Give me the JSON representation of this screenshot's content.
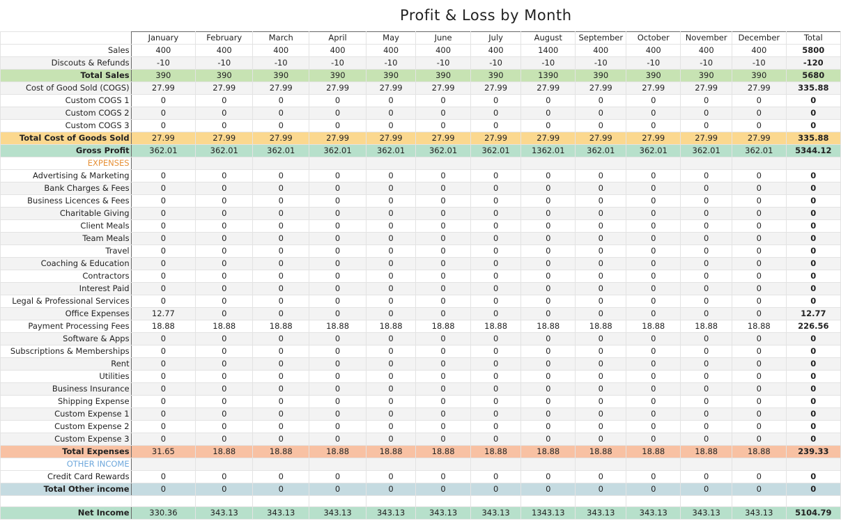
{
  "sheet": {
    "title": "Profit & Loss by Month",
    "months": [
      "January",
      "February",
      "March",
      "April",
      "May",
      "June",
      "July",
      "August",
      "September",
      "October",
      "November",
      "December"
    ],
    "total_label": "Total",
    "colors": {
      "total_sales": "#c7e3b3",
      "total_cogs": "#fbd88f",
      "gross_profit": "#b7e0cb",
      "total_expenses": "#f8c1a3",
      "total_other_income": "#c5dbe1",
      "net_income": "#b7e0cb",
      "expenses_header": "#e69138",
      "other_income_header": "#6fa8dc",
      "band": "#f3f3f3"
    },
    "rows": [
      {
        "label": "Sales",
        "values": [
          "400",
          "400",
          "400",
          "400",
          "400",
          "400",
          "400",
          "1400",
          "400",
          "400",
          "400",
          "400"
        ],
        "total": "5800"
      },
      {
        "label": "Discouts & Refunds",
        "values": [
          "-10",
          "-10",
          "-10",
          "-10",
          "-10",
          "-10",
          "-10",
          "-10",
          "-10",
          "-10",
          "-10",
          "-10"
        ],
        "total": "-120"
      },
      {
        "label": "Total Sales",
        "style": "total_sales",
        "values": [
          "390",
          "390",
          "390",
          "390",
          "390",
          "390",
          "390",
          "1390",
          "390",
          "390",
          "390",
          "390"
        ],
        "total": "5680"
      },
      {
        "label": "Cost of Good Sold (COGS)",
        "values": [
          "27.99",
          "27.99",
          "27.99",
          "27.99",
          "27.99",
          "27.99",
          "27.99",
          "27.99",
          "27.99",
          "27.99",
          "27.99",
          "27.99"
        ],
        "total": "335.88"
      },
      {
        "label": "Custom COGS 1",
        "values": [
          "0",
          "0",
          "0",
          "0",
          "0",
          "0",
          "0",
          "0",
          "0",
          "0",
          "0",
          "0"
        ],
        "total": "0"
      },
      {
        "label": "Custom COGS 2",
        "values": [
          "0",
          "0",
          "0",
          "0",
          "0",
          "0",
          "0",
          "0",
          "0",
          "0",
          "0",
          "0"
        ],
        "total": "0"
      },
      {
        "label": "Custom COGS 3",
        "values": [
          "0",
          "0",
          "0",
          "0",
          "0",
          "0",
          "0",
          "0",
          "0",
          "0",
          "0",
          "0"
        ],
        "total": "0"
      },
      {
        "label": "Total Cost of Goods Sold",
        "style": "total_cogs",
        "values": [
          "27.99",
          "27.99",
          "27.99",
          "27.99",
          "27.99",
          "27.99",
          "27.99",
          "27.99",
          "27.99",
          "27.99",
          "27.99",
          "27.99"
        ],
        "total": "335.88"
      },
      {
        "label": "Gross Profit",
        "style": "gross_profit",
        "values": [
          "362.01",
          "362.01",
          "362.01",
          "362.01",
          "362.01",
          "362.01",
          "362.01",
          "1362.01",
          "362.01",
          "362.01",
          "362.01",
          "362.01"
        ],
        "total": "5344.12"
      },
      {
        "label": "EXPENSES",
        "style": "expenses_header",
        "section": true
      },
      {
        "label": "Advertising & Marketing",
        "values": [
          "0",
          "0",
          "0",
          "0",
          "0",
          "0",
          "0",
          "0",
          "0",
          "0",
          "0",
          "0"
        ],
        "total": "0"
      },
      {
        "label": "Bank Charges & Fees",
        "values": [
          "0",
          "0",
          "0",
          "0",
          "0",
          "0",
          "0",
          "0",
          "0",
          "0",
          "0",
          "0"
        ],
        "total": "0"
      },
      {
        "label": "Business Licences & Fees",
        "values": [
          "0",
          "0",
          "0",
          "0",
          "0",
          "0",
          "0",
          "0",
          "0",
          "0",
          "0",
          "0"
        ],
        "total": "0"
      },
      {
        "label": "Charitable Giving",
        "values": [
          "0",
          "0",
          "0",
          "0",
          "0",
          "0",
          "0",
          "0",
          "0",
          "0",
          "0",
          "0"
        ],
        "total": "0"
      },
      {
        "label": "Client Meals",
        "values": [
          "0",
          "0",
          "0",
          "0",
          "0",
          "0",
          "0",
          "0",
          "0",
          "0",
          "0",
          "0"
        ],
        "total": "0"
      },
      {
        "label": "Team Meals",
        "values": [
          "0",
          "0",
          "0",
          "0",
          "0",
          "0",
          "0",
          "0",
          "0",
          "0",
          "0",
          "0"
        ],
        "total": "0"
      },
      {
        "label": "Travel",
        "values": [
          "0",
          "0",
          "0",
          "0",
          "0",
          "0",
          "0",
          "0",
          "0",
          "0",
          "0",
          "0"
        ],
        "total": "0"
      },
      {
        "label": "Coaching & Education",
        "values": [
          "0",
          "0",
          "0",
          "0",
          "0",
          "0",
          "0",
          "0",
          "0",
          "0",
          "0",
          "0"
        ],
        "total": "0"
      },
      {
        "label": "Contractors",
        "values": [
          "0",
          "0",
          "0",
          "0",
          "0",
          "0",
          "0",
          "0",
          "0",
          "0",
          "0",
          "0"
        ],
        "total": "0"
      },
      {
        "label": "Interest Paid",
        "values": [
          "0",
          "0",
          "0",
          "0",
          "0",
          "0",
          "0",
          "0",
          "0",
          "0",
          "0",
          "0"
        ],
        "total": "0"
      },
      {
        "label": "Legal & Professional Services",
        "values": [
          "0",
          "0",
          "0",
          "0",
          "0",
          "0",
          "0",
          "0",
          "0",
          "0",
          "0",
          "0"
        ],
        "total": "0"
      },
      {
        "label": "Office Expenses",
        "values": [
          "12.77",
          "0",
          "0",
          "0",
          "0",
          "0",
          "0",
          "0",
          "0",
          "0",
          "0",
          "0"
        ],
        "total": "12.77"
      },
      {
        "label": "Payment Processing Fees",
        "values": [
          "18.88",
          "18.88",
          "18.88",
          "18.88",
          "18.88",
          "18.88",
          "18.88",
          "18.88",
          "18.88",
          "18.88",
          "18.88",
          "18.88"
        ],
        "total": "226.56"
      },
      {
        "label": "Software & Apps",
        "values": [
          "0",
          "0",
          "0",
          "0",
          "0",
          "0",
          "0",
          "0",
          "0",
          "0",
          "0",
          "0"
        ],
        "total": "0"
      },
      {
        "label": "Subscriptions & Memberships",
        "values": [
          "0",
          "0",
          "0",
          "0",
          "0",
          "0",
          "0",
          "0",
          "0",
          "0",
          "0",
          "0"
        ],
        "total": "0"
      },
      {
        "label": "Rent",
        "values": [
          "0",
          "0",
          "0",
          "0",
          "0",
          "0",
          "0",
          "0",
          "0",
          "0",
          "0",
          "0"
        ],
        "total": "0"
      },
      {
        "label": "Utilities",
        "values": [
          "0",
          "0",
          "0",
          "0",
          "0",
          "0",
          "0",
          "0",
          "0",
          "0",
          "0",
          "0"
        ],
        "total": "0"
      },
      {
        "label": "Business Insurance",
        "values": [
          "0",
          "0",
          "0",
          "0",
          "0",
          "0",
          "0",
          "0",
          "0",
          "0",
          "0",
          "0"
        ],
        "total": "0"
      },
      {
        "label": "Shipping Expense",
        "values": [
          "0",
          "0",
          "0",
          "0",
          "0",
          "0",
          "0",
          "0",
          "0",
          "0",
          "0",
          "0"
        ],
        "total": "0"
      },
      {
        "label": "Custom Expense 1",
        "values": [
          "0",
          "0",
          "0",
          "0",
          "0",
          "0",
          "0",
          "0",
          "0",
          "0",
          "0",
          "0"
        ],
        "total": "0"
      },
      {
        "label": "Custom Expense 2",
        "values": [
          "0",
          "0",
          "0",
          "0",
          "0",
          "0",
          "0",
          "0",
          "0",
          "0",
          "0",
          "0"
        ],
        "total": "0"
      },
      {
        "label": "Custom Expense 3",
        "values": [
          "0",
          "0",
          "0",
          "0",
          "0",
          "0",
          "0",
          "0",
          "0",
          "0",
          "0",
          "0"
        ],
        "total": "0"
      },
      {
        "label": "Total Expenses",
        "style": "total_expenses",
        "values": [
          "31.65",
          "18.88",
          "18.88",
          "18.88",
          "18.88",
          "18.88",
          "18.88",
          "18.88",
          "18.88",
          "18.88",
          "18.88",
          "18.88"
        ],
        "total": "239.33"
      },
      {
        "label": "OTHER INCOME",
        "style": "other_income_header",
        "section": true
      },
      {
        "label": "Credit Card Rewards",
        "values": [
          "0",
          "0",
          "0",
          "0",
          "0",
          "0",
          "0",
          "0",
          "0",
          "0",
          "0",
          "0"
        ],
        "total": "0"
      },
      {
        "label": "Total Other income",
        "style": "total_other_income",
        "values": [
          "0",
          "0",
          "0",
          "0",
          "0",
          "0",
          "0",
          "0",
          "0",
          "0",
          "0",
          "0"
        ],
        "total": "0"
      },
      {
        "spacer": true
      },
      {
        "label": "Net Income",
        "style": "net_income",
        "values": [
          "330.36",
          "343.13",
          "343.13",
          "343.13",
          "343.13",
          "343.13",
          "343.13",
          "1343.13",
          "343.13",
          "343.13",
          "343.13",
          "343.13"
        ],
        "total": "5104.79"
      }
    ]
  }
}
